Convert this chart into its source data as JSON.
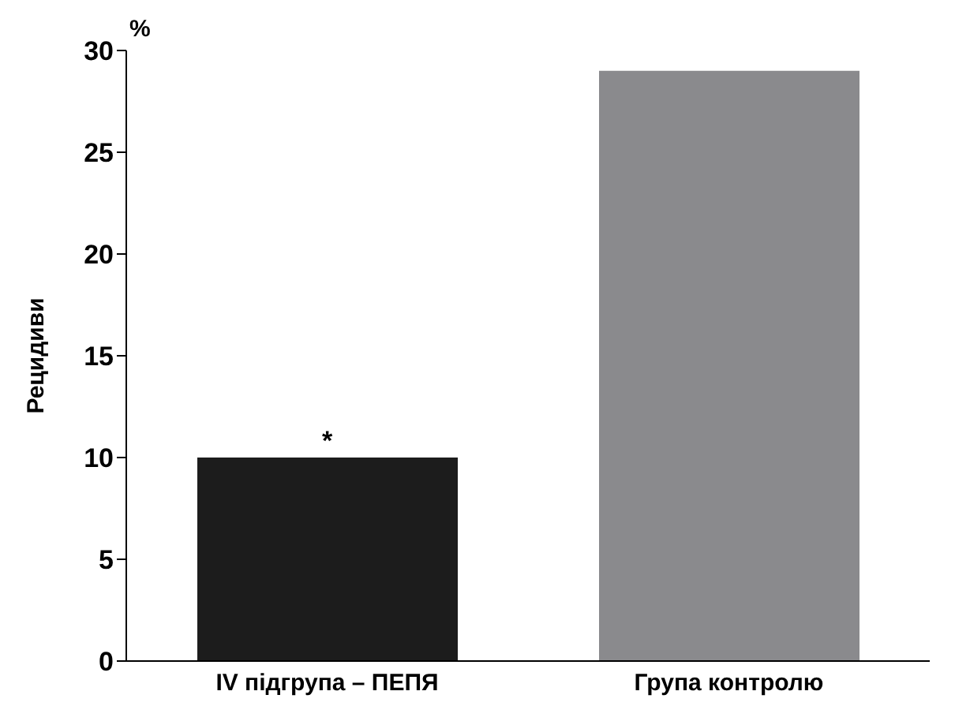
{
  "chart_data": {
    "type": "bar",
    "ylabel": "Рецидиви",
    "categories": [
      "IV підгрупа – ПЕПЯ",
      "Група контролю"
    ],
    "values": [
      10,
      29
    ],
    "colors": [
      "#1c1c1c",
      "#8a8a8d"
    ],
    "ylim": [
      0,
      30
    ],
    "yticks": [
      0,
      5,
      10,
      15,
      20,
      25,
      30
    ],
    "grid": false,
    "legend": false,
    "annotations": [
      "%",
      {
        "text": "*",
        "x": "IV підгрупа – ПЕПЯ",
        "y": 10
      }
    ]
  }
}
